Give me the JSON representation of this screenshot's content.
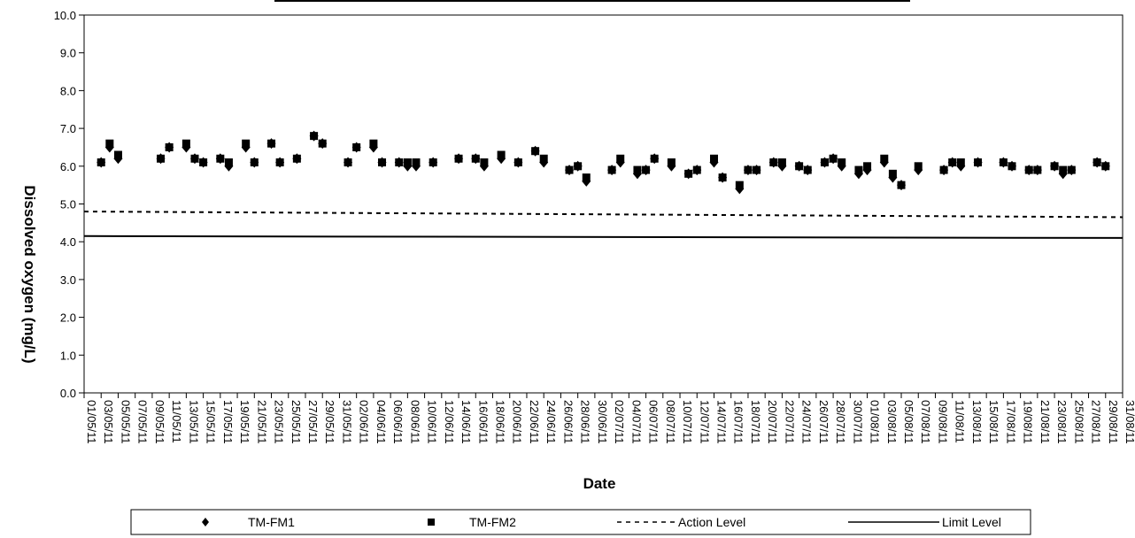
{
  "chart_data": {
    "type": "scatter",
    "title": "",
    "xlabel": "Date",
    "ylabel": "Dissolved oxygen (mg/L)",
    "ylim": [
      0,
      10
    ],
    "yticks": [
      "0.0",
      "1.0",
      "2.0",
      "3.0",
      "4.0",
      "5.0",
      "6.0",
      "7.0",
      "8.0",
      "9.0",
      "10.0"
    ],
    "xlim": [
      "01/05/11",
      "31/08/11"
    ],
    "xticks": [
      "01/05/11",
      "03/05/11",
      "05/05/11",
      "07/05/11",
      "09/05/11",
      "11/05/11",
      "13/05/11",
      "15/05/11",
      "17/05/11",
      "19/05/11",
      "21/05/11",
      "23/05/11",
      "25/05/11",
      "27/05/11",
      "29/05/11",
      "31/05/11",
      "02/06/11",
      "04/06/11",
      "06/06/11",
      "08/06/11",
      "10/06/11",
      "12/06/11",
      "14/06/11",
      "16/06/11",
      "18/06/11",
      "20/06/11",
      "22/06/11",
      "24/06/11",
      "26/06/11",
      "28/06/11",
      "30/06/11",
      "02/07/11",
      "04/07/11",
      "06/07/11",
      "08/07/11",
      "10/07/11",
      "12/07/11",
      "14/07/11",
      "16/07/11",
      "18/07/11",
      "20/07/11",
      "22/07/11",
      "24/07/11",
      "26/07/11",
      "28/07/11",
      "30/07/11",
      "01/08/11",
      "03/08/11",
      "05/08/11",
      "07/08/11",
      "09/08/11",
      "11/08/11",
      "13/08/11",
      "15/08/11",
      "17/08/11",
      "19/08/11",
      "21/08/11",
      "23/08/11",
      "25/08/11",
      "27/08/11",
      "29/08/11",
      "31/08/11"
    ],
    "grid": false,
    "legend_position": "bottom",
    "series": [
      {
        "name": "TM-FM1",
        "marker": "diamond",
        "color": "#000000",
        "x": [
          "03/05/11",
          "04/05/11",
          "05/05/11",
          "10/05/11",
          "11/05/11",
          "13/05/11",
          "14/05/11",
          "15/05/11",
          "17/05/11",
          "18/05/11",
          "20/05/11",
          "21/05/11",
          "23/05/11",
          "24/05/11",
          "26/05/11",
          "28/05/11",
          "29/05/11",
          "01/06/11",
          "02/06/11",
          "04/06/11",
          "05/06/11",
          "07/06/11",
          "08/06/11",
          "09/06/11",
          "11/06/11",
          "14/06/11",
          "16/06/11",
          "17/06/11",
          "19/06/11",
          "21/06/11",
          "23/06/11",
          "24/06/11",
          "27/06/11",
          "28/06/11",
          "29/06/11",
          "02/07/11",
          "03/07/11",
          "05/07/11",
          "06/07/11",
          "07/07/11",
          "09/07/11",
          "11/07/11",
          "12/07/11",
          "14/07/11",
          "15/07/11",
          "17/07/11",
          "18/07/11",
          "19/07/11",
          "21/07/11",
          "22/07/11",
          "24/07/11",
          "25/07/11",
          "27/07/11",
          "28/07/11",
          "29/07/11",
          "31/07/11",
          "01/08/11",
          "03/08/11",
          "04/08/11",
          "05/08/11",
          "07/08/11",
          "10/08/11",
          "11/08/11",
          "12/08/11",
          "14/08/11",
          "17/08/11",
          "18/08/11",
          "20/08/11",
          "21/08/11",
          "23/08/11",
          "24/08/11",
          "25/08/11",
          "28/08/11",
          "29/08/11"
        ],
        "y": [
          6.1,
          6.5,
          6.2,
          6.2,
          6.5,
          6.5,
          6.2,
          6.1,
          6.2,
          6.0,
          6.5,
          6.1,
          6.6,
          6.1,
          6.2,
          6.8,
          6.6,
          6.1,
          6.5,
          6.5,
          6.1,
          6.1,
          6.0,
          6.0,
          6.1,
          6.2,
          6.2,
          6.0,
          6.2,
          6.1,
          6.4,
          6.1,
          5.9,
          6.0,
          5.6,
          5.9,
          6.1,
          5.8,
          5.9,
          6.2,
          6.0,
          5.8,
          5.9,
          6.1,
          5.7,
          5.4,
          5.9,
          5.9,
          6.1,
          6.0,
          6.0,
          5.9,
          6.1,
          6.2,
          6.0,
          5.8,
          5.9,
          6.1,
          5.7,
          5.5,
          5.9,
          5.9,
          6.1,
          6.0,
          6.1,
          6.1,
          6.0,
          5.9,
          5.9,
          6.0,
          5.8,
          5.9,
          6.1,
          6.0
        ]
      },
      {
        "name": "TM-FM2",
        "marker": "square",
        "color": "#000000",
        "x": [
          "03/05/11",
          "04/05/11",
          "05/05/11",
          "10/05/11",
          "11/05/11",
          "13/05/11",
          "14/05/11",
          "15/05/11",
          "17/05/11",
          "18/05/11",
          "20/05/11",
          "21/05/11",
          "23/05/11",
          "24/05/11",
          "26/05/11",
          "28/05/11",
          "29/05/11",
          "01/06/11",
          "02/06/11",
          "04/06/11",
          "05/06/11",
          "07/06/11",
          "08/06/11",
          "09/06/11",
          "11/06/11",
          "14/06/11",
          "16/06/11",
          "17/06/11",
          "19/06/11",
          "21/06/11",
          "23/06/11",
          "24/06/11",
          "27/06/11",
          "28/06/11",
          "29/06/11",
          "02/07/11",
          "03/07/11",
          "05/07/11",
          "06/07/11",
          "07/07/11",
          "09/07/11",
          "11/07/11",
          "12/07/11",
          "14/07/11",
          "15/07/11",
          "17/07/11",
          "18/07/11",
          "19/07/11",
          "21/07/11",
          "22/07/11",
          "24/07/11",
          "25/07/11",
          "27/07/11",
          "28/07/11",
          "29/07/11",
          "31/07/11",
          "01/08/11",
          "03/08/11",
          "04/08/11",
          "05/08/11",
          "07/08/11",
          "10/08/11",
          "11/08/11",
          "12/08/11",
          "14/08/11",
          "17/08/11",
          "18/08/11",
          "20/08/11",
          "21/08/11",
          "23/08/11",
          "24/08/11",
          "25/08/11",
          "28/08/11",
          "29/08/11"
        ],
        "y": [
          6.1,
          6.6,
          6.3,
          6.2,
          6.5,
          6.6,
          6.2,
          6.1,
          6.2,
          6.1,
          6.6,
          6.1,
          6.6,
          6.1,
          6.2,
          6.8,
          6.6,
          6.1,
          6.5,
          6.6,
          6.1,
          6.1,
          6.1,
          6.1,
          6.1,
          6.2,
          6.2,
          6.1,
          6.3,
          6.1,
          6.4,
          6.2,
          5.9,
          6.0,
          5.7,
          5.9,
          6.2,
          5.9,
          5.9,
          6.2,
          6.1,
          5.8,
          5.9,
          6.2,
          5.7,
          5.5,
          5.9,
          5.9,
          6.1,
          6.1,
          6.0,
          5.9,
          6.1,
          6.2,
          6.1,
          5.9,
          6.0,
          6.2,
          5.8,
          5.5,
          6.0,
          5.9,
          6.1,
          6.1,
          6.1,
          6.1,
          6.0,
          5.9,
          5.9,
          6.0,
          5.9,
          5.9,
          6.1,
          6.0
        ]
      },
      {
        "name": "Action Level",
        "type": "line",
        "style": "dashed",
        "color": "#000000",
        "x": [
          "01/05/11",
          "31/08/11"
        ],
        "y": [
          4.8,
          4.65
        ]
      },
      {
        "name": "Limit Level",
        "type": "line",
        "style": "solid",
        "color": "#000000",
        "x": [
          "01/05/11",
          "31/08/11"
        ],
        "y": [
          4.15,
          4.1
        ]
      }
    ],
    "legend": [
      "TM-FM1",
      "TM-FM2",
      "Action Level",
      "Limit Level"
    ]
  }
}
